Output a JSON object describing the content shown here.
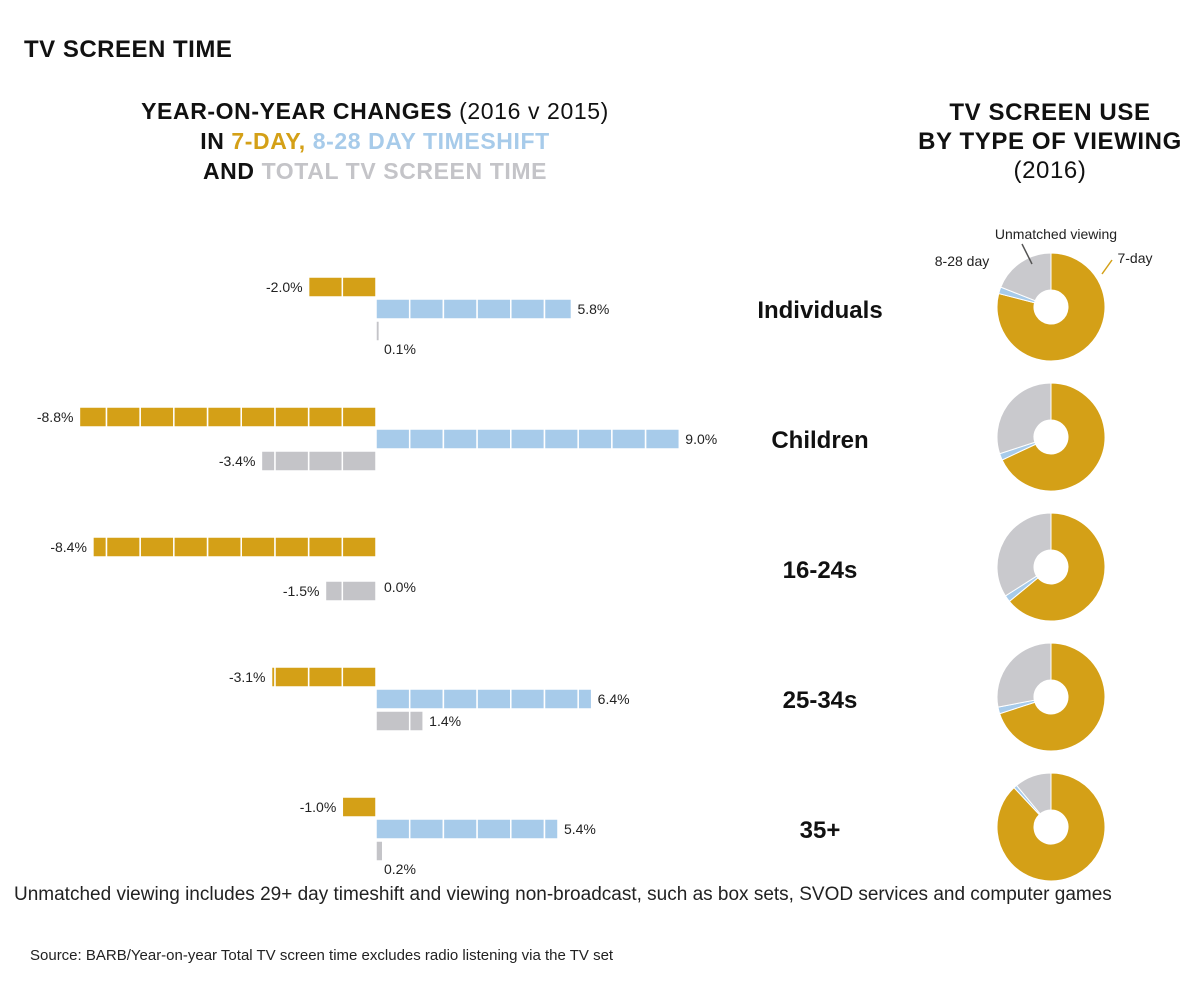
{
  "page_title": "TV SCREEN TIME",
  "left_title": {
    "line1_bold": "YEAR-ON-YEAR CHANGES",
    "line1_normal": "(2016 v 2015)",
    "line2_prefix": "IN",
    "line2_7day": "7-DAY,",
    "line2_timeshift": "8-28 DAY TIMESHIFT",
    "line3_prefix": "AND",
    "line3_total": "TOTAL TV SCREEN TIME"
  },
  "right_title": {
    "line1": "TV SCREEN USE",
    "line2": "BY TYPE OF VIEWING",
    "line3": "(2016)"
  },
  "colors": {
    "seven_day": "#D4A017",
    "timeshift": "#A7CBEA",
    "total": "#C4C4C8",
    "unmatched": "#C9C9CD"
  },
  "chart_data": [
    {
      "type": "bar",
      "title": "YEAR-ON-YEAR CHANGES (2016 v 2015)",
      "categories": [
        "Individuals",
        "Children",
        "16-24s",
        "25-34s",
        "35+"
      ],
      "series": [
        {
          "name": "7-DAY",
          "values": [
            -2.0,
            -8.8,
            -8.4,
            -3.1,
            -1.0
          ],
          "labels": [
            "-2.0%",
            "-8.8%",
            "-8.4%",
            "-3.1%",
            "-1.0%"
          ]
        },
        {
          "name": "8-28 DAY TIMESHIFT",
          "values": [
            5.8,
            9.0,
            0.0,
            6.4,
            5.4
          ],
          "labels": [
            "5.8%",
            "9.0%",
            "0.0%",
            "6.4%",
            "5.4%"
          ]
        },
        {
          "name": "TOTAL TV SCREEN TIME",
          "values": [
            0.1,
            -3.4,
            -1.5,
            1.4,
            0.2
          ],
          "labels": [
            "0.1%",
            "-3.4%",
            "-1.5%",
            "1.4%",
            "0.2%"
          ]
        }
      ],
      "xlim": [
        -9,
        9
      ],
      "segment_unit": 1
    },
    {
      "type": "pie",
      "title": "TV SCREEN USE BY TYPE OF VIEWING (2016)",
      "categories": [
        "Individuals",
        "Children",
        "16-24s",
        "25-34s",
        "35+"
      ],
      "slice_names": [
        "7-day",
        "8-28 day",
        "Unmatched viewing"
      ],
      "values": [
        [
          79,
          2,
          19
        ],
        [
          68,
          2,
          30
        ],
        [
          64,
          2,
          34
        ],
        [
          70,
          2,
          28
        ],
        [
          88,
          1,
          11
        ]
      ]
    }
  ],
  "footnote": "Unmatched viewing includes 29+ day timeshift and viewing non-broadcast, such as box sets, SVOD services and computer games",
  "source": "Source: BARB/Year-on-year Total TV screen time excludes radio listening via the TV set"
}
